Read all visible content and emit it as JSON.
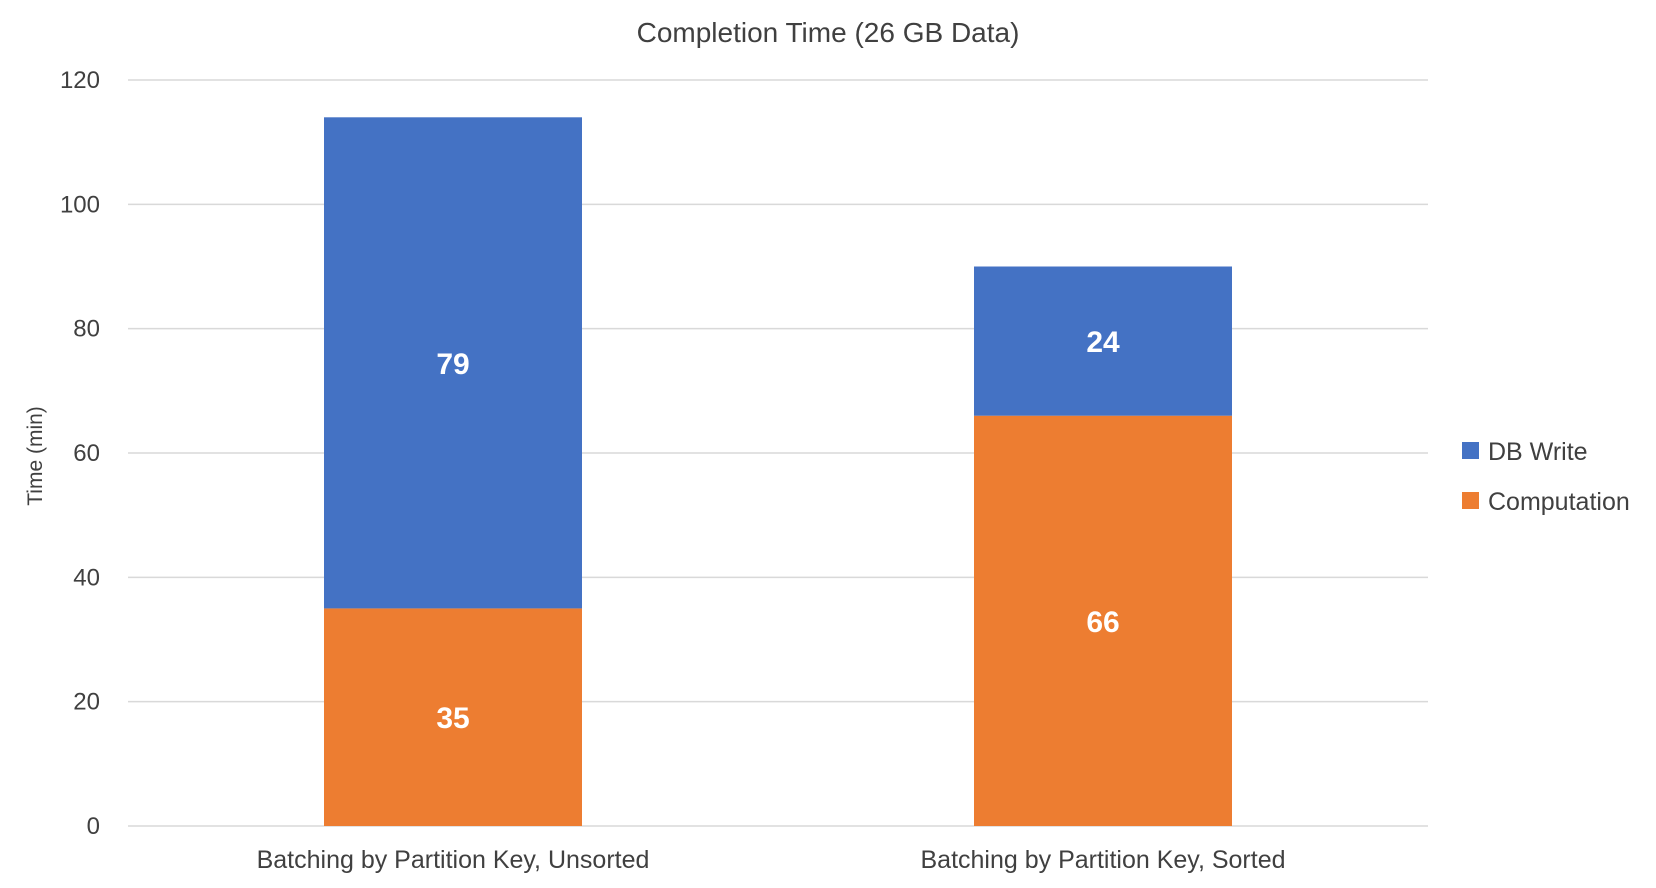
{
  "chart_data": {
    "type": "bar",
    "stacked": true,
    "title": "Completion Time (26 GB Data)",
    "xlabel": "",
    "ylabel": "Time (min)",
    "ylim": [
      0,
      120
    ],
    "yticks": [
      0,
      20,
      40,
      60,
      80,
      100,
      120
    ],
    "grid": true,
    "legend_position": "right",
    "categories": [
      "Batching by Partition Key, Unsorted",
      "Batching by Partition Key, Sorted"
    ],
    "series": [
      {
        "name": "Computation",
        "values": [
          35,
          66
        ],
        "color": "#ED7D31"
      },
      {
        "name": "DB Write",
        "values": [
          79,
          24
        ],
        "color": "#4472C4"
      }
    ],
    "legend_order": [
      "DB Write",
      "Computation"
    ]
  }
}
